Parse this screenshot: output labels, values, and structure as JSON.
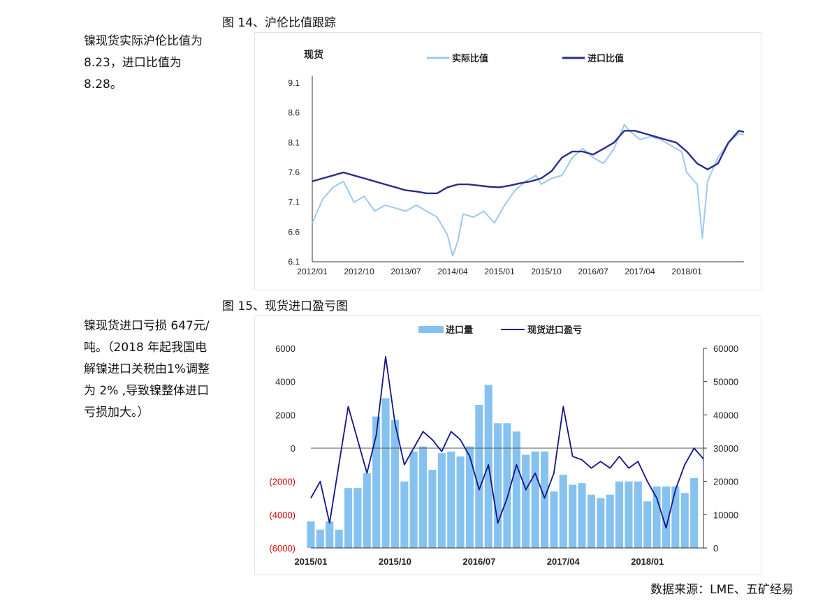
{
  "notes": {
    "note1": "镍现货实际沪伦比值为 8.23，进口比值为 8.28。",
    "note2": "镍现货进口亏损 647元/吨。（2018 年起我国电解镍进口关税由1%调整为 2% ,导致镍整体进口亏损加大。）"
  },
  "fig14_title": "图 14、沪伦比值跟踪",
  "fig15_title": "图 15、现货进口盈亏图",
  "source": "数据来源：LME、五矿经易",
  "colors": {
    "light_blue": "#9dc8f0",
    "dark_blue": "#2b2b8c",
    "bar_blue": "#86c2ef",
    "navy": "#14148a",
    "negative_red": "#e00000"
  },
  "chart_data": [
    {
      "type": "line",
      "ylabel": "现货",
      "legend_position": "top",
      "ylim": [
        6.1,
        9.1
      ],
      "yticks": [
        "9.1",
        "8.6",
        "8.1",
        "7.6",
        "7.1",
        "6.6",
        "6.1"
      ],
      "xticks": [
        "2012/01",
        "2012/10",
        "2013/07",
        "2014/04",
        "2015/01",
        "2015/10",
        "2016/07",
        "2017/04",
        "2018/01"
      ],
      "x_range": [
        "2012/01",
        "2018/12"
      ],
      "series": [
        {
          "name": "实际比值",
          "color": "#9dc8f0",
          "points": [
            [
              "2012/01",
              6.75
            ],
            [
              "2012/03",
              7.15
            ],
            [
              "2012/05",
              7.35
            ],
            [
              "2012/07",
              7.45
            ],
            [
              "2012/09",
              7.1
            ],
            [
              "2012/11",
              7.2
            ],
            [
              "2013/01",
              6.95
            ],
            [
              "2013/03",
              7.05
            ],
            [
              "2013/05",
              7.0
            ],
            [
              "2013/07",
              6.95
            ],
            [
              "2013/09",
              7.05
            ],
            [
              "2013/11",
              6.95
            ],
            [
              "2014/01",
              6.85
            ],
            [
              "2014/03",
              6.55
            ],
            [
              "2014/04",
              6.2
            ],
            [
              "2014/05",
              6.45
            ],
            [
              "2014/06",
              6.9
            ],
            [
              "2014/08",
              6.85
            ],
            [
              "2014/10",
              6.95
            ],
            [
              "2014/12",
              6.75
            ],
            [
              "2015/02",
              7.05
            ],
            [
              "2015/04",
              7.3
            ],
            [
              "2015/06",
              7.45
            ],
            [
              "2015/08",
              7.55
            ],
            [
              "2015/09",
              7.4
            ],
            [
              "2015/11",
              7.5
            ],
            [
              "2016/01",
              7.55
            ],
            [
              "2016/03",
              7.85
            ],
            [
              "2016/05",
              8.0
            ],
            [
              "2016/07",
              7.85
            ],
            [
              "2016/09",
              7.75
            ],
            [
              "2016/11",
              8.0
            ],
            [
              "2017/01",
              8.4
            ],
            [
              "2017/02",
              8.3
            ],
            [
              "2017/04",
              8.15
            ],
            [
              "2017/06",
              8.2
            ],
            [
              "2017/08",
              8.15
            ],
            [
              "2017/10",
              8.05
            ],
            [
              "2017/12",
              7.95
            ],
            [
              "2018/01",
              7.6
            ],
            [
              "2018/03",
              7.4
            ],
            [
              "2018/04",
              6.5
            ],
            [
              "2018/05",
              7.45
            ],
            [
              "2018/07",
              7.85
            ],
            [
              "2018/09",
              8.1
            ],
            [
              "2018/11",
              8.25
            ],
            [
              "2018/12",
              8.23
            ]
          ]
        },
        {
          "name": "进口比值",
          "color": "#2b2b8c",
          "points": [
            [
              "2012/01",
              7.45
            ],
            [
              "2012/03",
              7.5
            ],
            [
              "2012/05",
              7.55
            ],
            [
              "2012/07",
              7.6
            ],
            [
              "2012/09",
              7.55
            ],
            [
              "2012/11",
              7.5
            ],
            [
              "2013/01",
              7.45
            ],
            [
              "2013/03",
              7.4
            ],
            [
              "2013/05",
              7.35
            ],
            [
              "2013/07",
              7.3
            ],
            [
              "2013/09",
              7.28
            ],
            [
              "2013/11",
              7.25
            ],
            [
              "2014/01",
              7.25
            ],
            [
              "2014/03",
              7.35
            ],
            [
              "2014/05",
              7.4
            ],
            [
              "2014/07",
              7.4
            ],
            [
              "2014/09",
              7.38
            ],
            [
              "2014/11",
              7.36
            ],
            [
              "2015/01",
              7.35
            ],
            [
              "2015/03",
              7.38
            ],
            [
              "2015/05",
              7.42
            ],
            [
              "2015/07",
              7.45
            ],
            [
              "2015/09",
              7.5
            ],
            [
              "2015/11",
              7.62
            ],
            [
              "2016/01",
              7.85
            ],
            [
              "2016/03",
              7.95
            ],
            [
              "2016/05",
              7.95
            ],
            [
              "2016/07",
              7.9
            ],
            [
              "2016/09",
              8.0
            ],
            [
              "2016/11",
              8.1
            ],
            [
              "2017/01",
              8.3
            ],
            [
              "2017/03",
              8.3
            ],
            [
              "2017/05",
              8.25
            ],
            [
              "2017/07",
              8.2
            ],
            [
              "2017/09",
              8.15
            ],
            [
              "2017/11",
              8.1
            ],
            [
              "2018/01",
              7.95
            ],
            [
              "2018/03",
              7.75
            ],
            [
              "2018/05",
              7.65
            ],
            [
              "2018/07",
              7.75
            ],
            [
              "2018/09",
              8.1
            ],
            [
              "2018/11",
              8.3
            ],
            [
              "2018/12",
              8.28
            ]
          ]
        }
      ]
    },
    {
      "type": "bar",
      "legend_position": "top",
      "y_left_range": [
        -6000,
        6000
      ],
      "y_left_ticks": [
        "6000",
        "4000",
        "2000",
        "0",
        "(2000)",
        "(4000)",
        "(6000)"
      ],
      "y_right_range": [
        0,
        60000
      ],
      "y_right_ticks": [
        "60000",
        "50000",
        "40000",
        "30000",
        "20000",
        "10000",
        "0"
      ],
      "xticks": [
        "2015/01",
        "2015/10",
        "2016/07",
        "2017/04",
        "2018/01"
      ],
      "x_range": [
        "2015/01",
        "2018/07"
      ],
      "series": [
        {
          "name": "进口量",
          "axis": "right",
          "color": "#86c2ef",
          "points": [
            [
              "2015/01",
              8000
            ],
            [
              "2015/02",
              5500
            ],
            [
              "2015/03",
              8000
            ],
            [
              "2015/04",
              5500
            ],
            [
              "2015/05",
              18000
            ],
            [
              "2015/06",
              18000
            ],
            [
              "2015/07",
              22500
            ],
            [
              "2015/08",
              39500
            ],
            [
              "2015/09",
              45000
            ],
            [
              "2015/10",
              38500
            ],
            [
              "2015/11",
              20000
            ],
            [
              "2015/12",
              29000
            ],
            [
              "2016/01",
              30500
            ],
            [
              "2016/02",
              23500
            ],
            [
              "2016/03",
              28500
            ],
            [
              "2016/04",
              29000
            ],
            [
              "2016/05",
              27500
            ],
            [
              "2016/06",
              30500
            ],
            [
              "2016/07",
              43000
            ],
            [
              "2016/08",
              49000
            ],
            [
              "2016/09",
              37500
            ],
            [
              "2016/10",
              37500
            ],
            [
              "2016/11",
              35000
            ],
            [
              "2016/12",
              28000
            ],
            [
              "2017/01",
              29000
            ],
            [
              "2017/02",
              29000
            ],
            [
              "2017/03",
              17000
            ],
            [
              "2017/04",
              22000
            ],
            [
              "2017/05",
              19000
            ],
            [
              "2017/06",
              19500
            ],
            [
              "2017/07",
              16000
            ],
            [
              "2017/08",
              15000
            ],
            [
              "2017/09",
              16000
            ],
            [
              "2017/10",
              20000
            ],
            [
              "2017/11",
              20000
            ],
            [
              "2017/12",
              20000
            ],
            [
              "2018/01",
              14000
            ],
            [
              "2018/02",
              18500
            ],
            [
              "2018/03",
              18500
            ],
            [
              "2018/04",
              18500
            ],
            [
              "2018/05",
              16500
            ],
            [
              "2018/06",
              21000
            ]
          ]
        },
        {
          "name": "现货进口盈亏",
          "axis": "left",
          "color": "#14148a",
          "points": [
            [
              "2015/01",
              -3000
            ],
            [
              "2015/02",
              -2000
            ],
            [
              "2015/03",
              -4500
            ],
            [
              "2015/04",
              -1000
            ],
            [
              "2015/05",
              2500
            ],
            [
              "2015/06",
              500
            ],
            [
              "2015/07",
              -1500
            ],
            [
              "2015/08",
              800
            ],
            [
              "2015/09",
              5500
            ],
            [
              "2015/10",
              1500
            ],
            [
              "2015/11",
              -1000
            ],
            [
              "2015/12",
              0
            ],
            [
              "2016/01",
              1000
            ],
            [
              "2016/02",
              500
            ],
            [
              "2016/03",
              -200
            ],
            [
              "2016/04",
              1000
            ],
            [
              "2016/05",
              500
            ],
            [
              "2016/06",
              -500
            ],
            [
              "2016/07",
              -2500
            ],
            [
              "2016/08",
              -1000
            ],
            [
              "2016/09",
              -4500
            ],
            [
              "2016/10",
              -3000
            ],
            [
              "2016/11",
              -1000
            ],
            [
              "2016/12",
              -2500
            ],
            [
              "2017/01",
              -1500
            ],
            [
              "2017/02",
              -3000
            ],
            [
              "2017/03",
              -1500
            ],
            [
              "2017/04",
              2500
            ],
            [
              "2017/05",
              -500
            ],
            [
              "2017/06",
              -700
            ],
            [
              "2017/07",
              -1200
            ],
            [
              "2017/08",
              -800
            ],
            [
              "2017/09",
              -1200
            ],
            [
              "2017/10",
              -500
            ],
            [
              "2017/11",
              -1200
            ],
            [
              "2017/12",
              -800
            ],
            [
              "2018/01",
              -2000
            ],
            [
              "2018/02",
              -3000
            ],
            [
              "2018/03",
              -4800
            ],
            [
              "2018/04",
              -2500
            ],
            [
              "2018/05",
              -1000
            ],
            [
              "2018/06",
              0
            ],
            [
              "2018/07",
              -647
            ]
          ]
        }
      ]
    }
  ]
}
